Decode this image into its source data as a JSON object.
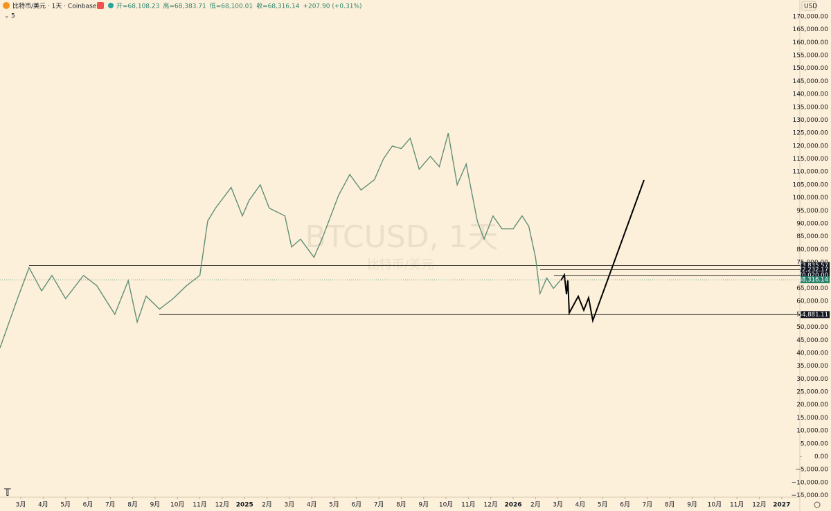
{
  "header": {
    "symbol": "比特币/美元 · 1天 · Coinbase",
    "open": "开=68,108.23",
    "high": "高=68,383.71",
    "low": "低=68,100.01",
    "close": "收=68,316.14",
    "change": "+207.90 (+0.31%)",
    "indicator": "5"
  },
  "chart_data": {
    "type": "line",
    "watermark": "BTCUSD, 1天",
    "watermark_sub": "比特币/美元",
    "currency": "USD",
    "grid": false,
    "x": [
      -0.93,
      -0.15,
      0.37,
      0.93,
      1.39,
      2.0,
      2.8,
      3.4,
      4.2,
      4.8,
      5.2,
      5.6,
      6.2,
      6.8,
      7.4,
      8.0,
      8.35,
      8.7,
      9.4,
      9.9,
      10.2,
      10.7,
      11.1,
      11.8,
      12.1,
      12.5,
      13.1,
      13.5,
      14.2,
      14.7,
      15.2,
      15.8,
      16.2,
      16.6,
      17.0,
      17.4,
      17.8,
      18.3,
      18.7,
      19.1,
      19.5,
      19.9,
      20.4,
      20.7,
      21.1,
      21.5,
      22.0,
      22.4,
      22.7,
      23.0,
      23.2,
      23.5,
      23.8,
      24.1
    ],
    "series": [
      {
        "name": "BTCUSD",
        "color": "#5f8f76",
        "values": [
          42000,
          61000,
          73000,
          64000,
          70000,
          61000,
          70000,
          66000,
          55000,
          68000,
          52000,
          62000,
          57000,
          61000,
          66000,
          70000,
          91000,
          96000,
          104000,
          93000,
          99000,
          105000,
          96000,
          93000,
          81000,
          84000,
          77000,
          85000,
          101000,
          109000,
          103000,
          107000,
          115000,
          120000,
          119000,
          123000,
          111000,
          116000,
          112000,
          125000,
          105000,
          113000,
          91000,
          84000,
          93000,
          88000,
          88000,
          93000,
          89000,
          77000,
          63000,
          69000,
          65000,
          68000
        ]
      }
    ],
    "levels": [
      {
        "value": 73835.57,
        "label": "73,835.57",
        "color": "#131722"
      },
      {
        "value": 72232.17,
        "label": "72,232.17",
        "color": "#131722"
      },
      {
        "value": 70020,
        "label": "70,020.00",
        "color": "#131722"
      },
      {
        "value": 68316.14,
        "label": "68,316.14",
        "color": "#26806a"
      },
      {
        "value": 54881.11,
        "label": "54,881.11",
        "color": "#131722"
      }
    ],
    "xlim": [
      -0.93,
      34.81
    ],
    "xticks": [
      {
        "value": 0,
        "label": "3月"
      },
      {
        "value": 1,
        "label": "4月"
      },
      {
        "value": 2,
        "label": "5月"
      },
      {
        "value": 3,
        "label": "6月"
      },
      {
        "value": 4,
        "label": "7月"
      },
      {
        "value": 5,
        "label": "8月"
      },
      {
        "value": 6,
        "label": "9月"
      },
      {
        "value": 7,
        "label": "10月"
      },
      {
        "value": 8,
        "label": "11月"
      },
      {
        "value": 9,
        "label": "12月"
      },
      {
        "value": 10,
        "label": "2025"
      },
      {
        "value": 11,
        "label": "2月"
      },
      {
        "value": 12,
        "label": "3月"
      },
      {
        "value": 13,
        "label": "4月"
      },
      {
        "value": 14,
        "label": "5月"
      },
      {
        "value": 15,
        "label": "6月"
      },
      {
        "value": 16,
        "label": "7月"
      },
      {
        "value": 17,
        "label": "8月"
      },
      {
        "value": 18,
        "label": "9月"
      },
      {
        "value": 19,
        "label": "10月"
      },
      {
        "value": 20,
        "label": "11月"
      },
      {
        "value": 21,
        "label": "12月"
      },
      {
        "value": 22,
        "label": "2026"
      },
      {
        "value": 23,
        "label": "2月"
      },
      {
        "value": 24,
        "label": "3月"
      },
      {
        "value": 25,
        "label": "4月"
      },
      {
        "value": 26,
        "label": "5月"
      },
      {
        "value": 27,
        "label": "6月"
      },
      {
        "value": 28,
        "label": "7月"
      },
      {
        "value": 29,
        "label": "8月"
      },
      {
        "value": 30,
        "label": "9月"
      },
      {
        "value": 31,
        "label": "10月"
      },
      {
        "value": 32,
        "label": "11月"
      },
      {
        "value": 33,
        "label": "12月"
      },
      {
        "value": 34,
        "label": "2027"
      }
    ],
    "ylim": [
      -21000,
      176400
    ],
    "yticks": [
      {
        "value": 170000,
        "label": "170,000.00"
      },
      {
        "value": 165000,
        "label": "165,000.00"
      },
      {
        "value": 160000,
        "label": "160,000.00"
      },
      {
        "value": 155000,
        "label": "155,000.00"
      },
      {
        "value": 150000,
        "label": "150,000.00"
      },
      {
        "value": 145000,
        "label": "145,000.00"
      },
      {
        "value": 140000,
        "label": "140,000.00"
      },
      {
        "value": 135000,
        "label": "135,000.00"
      },
      {
        "value": 130000,
        "label": "130,000.00"
      },
      {
        "value": 125000,
        "label": "125,000.00"
      },
      {
        "value": 120000,
        "label": "120,000.00"
      },
      {
        "value": 115000,
        "label": "115,000.00"
      },
      {
        "value": 110000,
        "label": "110,000.00"
      },
      {
        "value": 105000,
        "label": "105,000.00"
      },
      {
        "value": 100000,
        "label": "100,000.00"
      },
      {
        "value": 95000,
        "label": "95,000.00"
      },
      {
        "value": 90000,
        "label": "90,000.00"
      },
      {
        "value": 85000,
        "label": "85,000.00"
      },
      {
        "value": 80000,
        "label": "80,000.00"
      },
      {
        "value": 75000,
        "label": "75,000.00"
      },
      {
        "value": 65000,
        "label": "65,000.00"
      },
      {
        "value": 60000,
        "label": "60,000.00"
      },
      {
        "value": 55000,
        "label": "55,000.00"
      },
      {
        "value": 50000,
        "label": "50,000.00"
      },
      {
        "value": 45000,
        "label": "45,000.00"
      },
      {
        "value": 40000,
        "label": "40,000.00"
      },
      {
        "value": 35000,
        "label": "35,000.00"
      },
      {
        "value": 30000,
        "label": "30,000.00"
      },
      {
        "value": 25000,
        "label": "25,000.00"
      },
      {
        "value": 20000,
        "label": "20,000.00"
      },
      {
        "value": 15000,
        "label": "15,000.00"
      },
      {
        "value": 10000,
        "label": "10,000.00"
      },
      {
        "value": 5000,
        "label": "5,000.00"
      },
      {
        "value": 0,
        "label": "0.00"
      },
      {
        "value": -5000,
        "label": "−5,000.00"
      },
      {
        "value": -10000,
        "label": "−10,000.00"
      },
      {
        "value": -15000,
        "label": "−15,000.00"
      }
    ]
  }
}
